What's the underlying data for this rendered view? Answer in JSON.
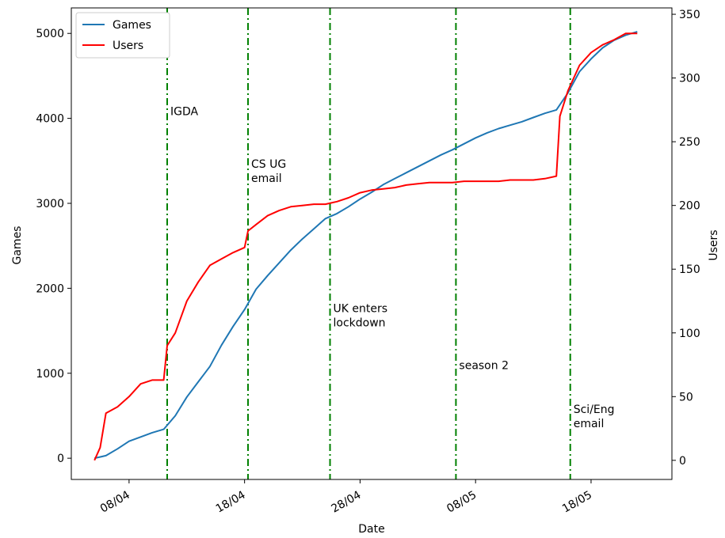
{
  "chart_data": {
    "type": "line",
    "xlabel": "Date",
    "ylabel_left": "Games",
    "ylabel_right": "Users",
    "x_ticks": [
      "08/04",
      "18/04",
      "28/04",
      "08/05",
      "18/05"
    ],
    "left_axis": {
      "ylim": [
        -250,
        5300
      ],
      "ticks": [
        0,
        1000,
        2000,
        3000,
        4000,
        5000
      ]
    },
    "right_axis": {
      "ylim": [
        -15,
        355
      ],
      "ticks": [
        0,
        50,
        100,
        150,
        200,
        250,
        300,
        350
      ]
    },
    "xlim": [
      "2020-04-03",
      "2020-05-25"
    ],
    "grid": false,
    "legend_position": "top-left",
    "legend": [
      "Games",
      "Users"
    ],
    "series": [
      {
        "name": "Games",
        "axis": "left",
        "color": "#1f77b4",
        "points": [
          [
            "2020-04-05",
            0
          ],
          [
            "2020-04-06",
            30
          ],
          [
            "2020-04-07",
            110
          ],
          [
            "2020-04-08",
            200
          ],
          [
            "2020-04-09",
            250
          ],
          [
            "2020-04-10",
            300
          ],
          [
            "2020-04-11",
            340
          ],
          [
            "2020-04-12",
            500
          ],
          [
            "2020-04-13",
            720
          ],
          [
            "2020-04-14",
            900
          ],
          [
            "2020-04-15",
            1080
          ],
          [
            "2020-04-16",
            1330
          ],
          [
            "2020-04-17",
            1550
          ],
          [
            "2020-04-18",
            1750
          ],
          [
            "2020-04-19",
            1990
          ],
          [
            "2020-04-20",
            2150
          ],
          [
            "2020-04-21",
            2300
          ],
          [
            "2020-04-22",
            2450
          ],
          [
            "2020-04-23",
            2580
          ],
          [
            "2020-04-24",
            2700
          ],
          [
            "2020-04-25",
            2820
          ],
          [
            "2020-04-26",
            2880
          ],
          [
            "2020-04-27",
            2960
          ],
          [
            "2020-04-28",
            3050
          ],
          [
            "2020-04-29",
            3130
          ],
          [
            "2020-04-30",
            3220
          ],
          [
            "2020-05-01",
            3290
          ],
          [
            "2020-05-02",
            3360
          ],
          [
            "2020-05-03",
            3430
          ],
          [
            "2020-05-04",
            3500
          ],
          [
            "2020-05-05",
            3570
          ],
          [
            "2020-05-06",
            3630
          ],
          [
            "2020-05-07",
            3700
          ],
          [
            "2020-05-08",
            3770
          ],
          [
            "2020-05-09",
            3830
          ],
          [
            "2020-05-10",
            3880
          ],
          [
            "2020-05-11",
            3920
          ],
          [
            "2020-05-12",
            3960
          ],
          [
            "2020-05-13",
            4010
          ],
          [
            "2020-05-14",
            4060
          ],
          [
            "2020-05-15",
            4100
          ],
          [
            "2020-05-16",
            4300
          ],
          [
            "2020-05-17",
            4550
          ],
          [
            "2020-05-18",
            4700
          ],
          [
            "2020-05-19",
            4830
          ],
          [
            "2020-05-20",
            4920
          ],
          [
            "2020-05-21",
            4980
          ],
          [
            "2020-05-22",
            5020
          ]
        ]
      },
      {
        "name": "Users",
        "axis": "right",
        "color": "#ff0000",
        "points": [
          [
            "2020-04-05",
            0
          ],
          [
            "2020-04-05.5",
            10
          ],
          [
            "2020-04-06",
            37
          ],
          [
            "2020-04-07",
            42
          ],
          [
            "2020-04-08",
            50
          ],
          [
            "2020-04-09",
            60
          ],
          [
            "2020-04-10",
            63
          ],
          [
            "2020-04-11",
            63
          ],
          [
            "2020-04-11.3",
            90
          ],
          [
            "2020-04-12",
            100
          ],
          [
            "2020-04-13",
            125
          ],
          [
            "2020-04-14",
            140
          ],
          [
            "2020-04-15",
            153
          ],
          [
            "2020-04-16",
            158
          ],
          [
            "2020-04-17",
            163
          ],
          [
            "2020-04-18",
            167
          ],
          [
            "2020-04-18.3",
            180
          ],
          [
            "2020-04-19",
            185
          ],
          [
            "2020-04-20",
            192
          ],
          [
            "2020-04-21",
            196
          ],
          [
            "2020-04-22",
            199
          ],
          [
            "2020-04-23",
            200
          ],
          [
            "2020-04-24",
            201
          ],
          [
            "2020-04-25",
            201
          ],
          [
            "2020-04-26",
            203
          ],
          [
            "2020-04-27",
            206
          ],
          [
            "2020-04-28",
            210
          ],
          [
            "2020-04-29",
            212
          ],
          [
            "2020-04-30",
            213
          ],
          [
            "2020-05-01",
            214
          ],
          [
            "2020-05-02",
            216
          ],
          [
            "2020-05-03",
            217
          ],
          [
            "2020-05-04",
            218
          ],
          [
            "2020-05-05",
            218
          ],
          [
            "2020-05-06",
            218
          ],
          [
            "2020-05-07",
            219
          ],
          [
            "2020-05-08",
            219
          ],
          [
            "2020-05-09",
            219
          ],
          [
            "2020-05-10",
            219
          ],
          [
            "2020-05-11",
            220
          ],
          [
            "2020-05-12",
            220
          ],
          [
            "2020-05-13",
            220
          ],
          [
            "2020-05-14",
            221
          ],
          [
            "2020-05-15",
            223
          ],
          [
            "2020-05-15.3",
            270
          ],
          [
            "2020-05-16",
            290
          ],
          [
            "2020-05-17",
            310
          ],
          [
            "2020-05-18",
            320
          ],
          [
            "2020-05-19",
            326
          ],
          [
            "2020-05-20",
            330
          ],
          [
            "2020-05-21",
            335
          ],
          [
            "2020-05-22",
            335
          ]
        ]
      }
    ],
    "events": [
      {
        "date": "2020-04-11.3",
        "label": [
          "IGDA"
        ],
        "label_games_y": 4040
      },
      {
        "date": "2020-04-18.3",
        "label": [
          "CS UG",
          "email"
        ],
        "label_games_y": 3420
      },
      {
        "date": "2020-04-25.4",
        "label": [
          "UK enters",
          "lockdown"
        ],
        "label_games_y": 1720
      },
      {
        "date": "2020-05-06.3",
        "label": [
          "season 2"
        ],
        "label_games_y": 1050
      },
      {
        "date": "2020-05-16.2",
        "label": [
          "Sci/Eng",
          "email"
        ],
        "label_games_y": 530
      }
    ],
    "event_line_color": "#008000"
  }
}
